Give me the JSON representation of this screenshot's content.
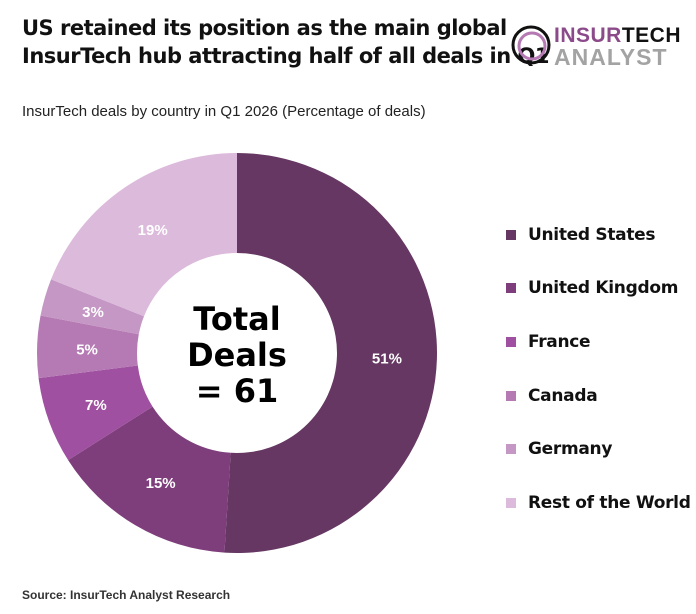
{
  "title_line1": "US retained its position as the main global",
  "title_line2": "InsurTech hub attracting half of all deals in Q1",
  "logo": {
    "line1a": "INSUR",
    "line1b": "TECH",
    "line2": "ANALYST"
  },
  "source": "Source: InsurTech Analyst Research",
  "chart_data": {
    "type": "pie",
    "subtitle": "InsurTech deals by country in Q1 2026 (Percentage of deals)",
    "center_label": [
      "Total",
      "Deals",
      "= 61"
    ],
    "categories": [
      "United States",
      "United Kingdom",
      "France",
      "Canada",
      "Germany",
      "Rest of the World"
    ],
    "values": [
      51,
      15,
      7,
      5,
      3,
      19
    ],
    "labels": [
      "51%",
      "15%",
      "7%",
      "5%",
      "3%",
      "19%"
    ],
    "colors": [
      "#653762",
      "#7e3d7b",
      "#a050a0",
      "#b57ab4",
      "#c597c4",
      "#dcbadb"
    ],
    "donut": true,
    "legend_position": "right"
  }
}
